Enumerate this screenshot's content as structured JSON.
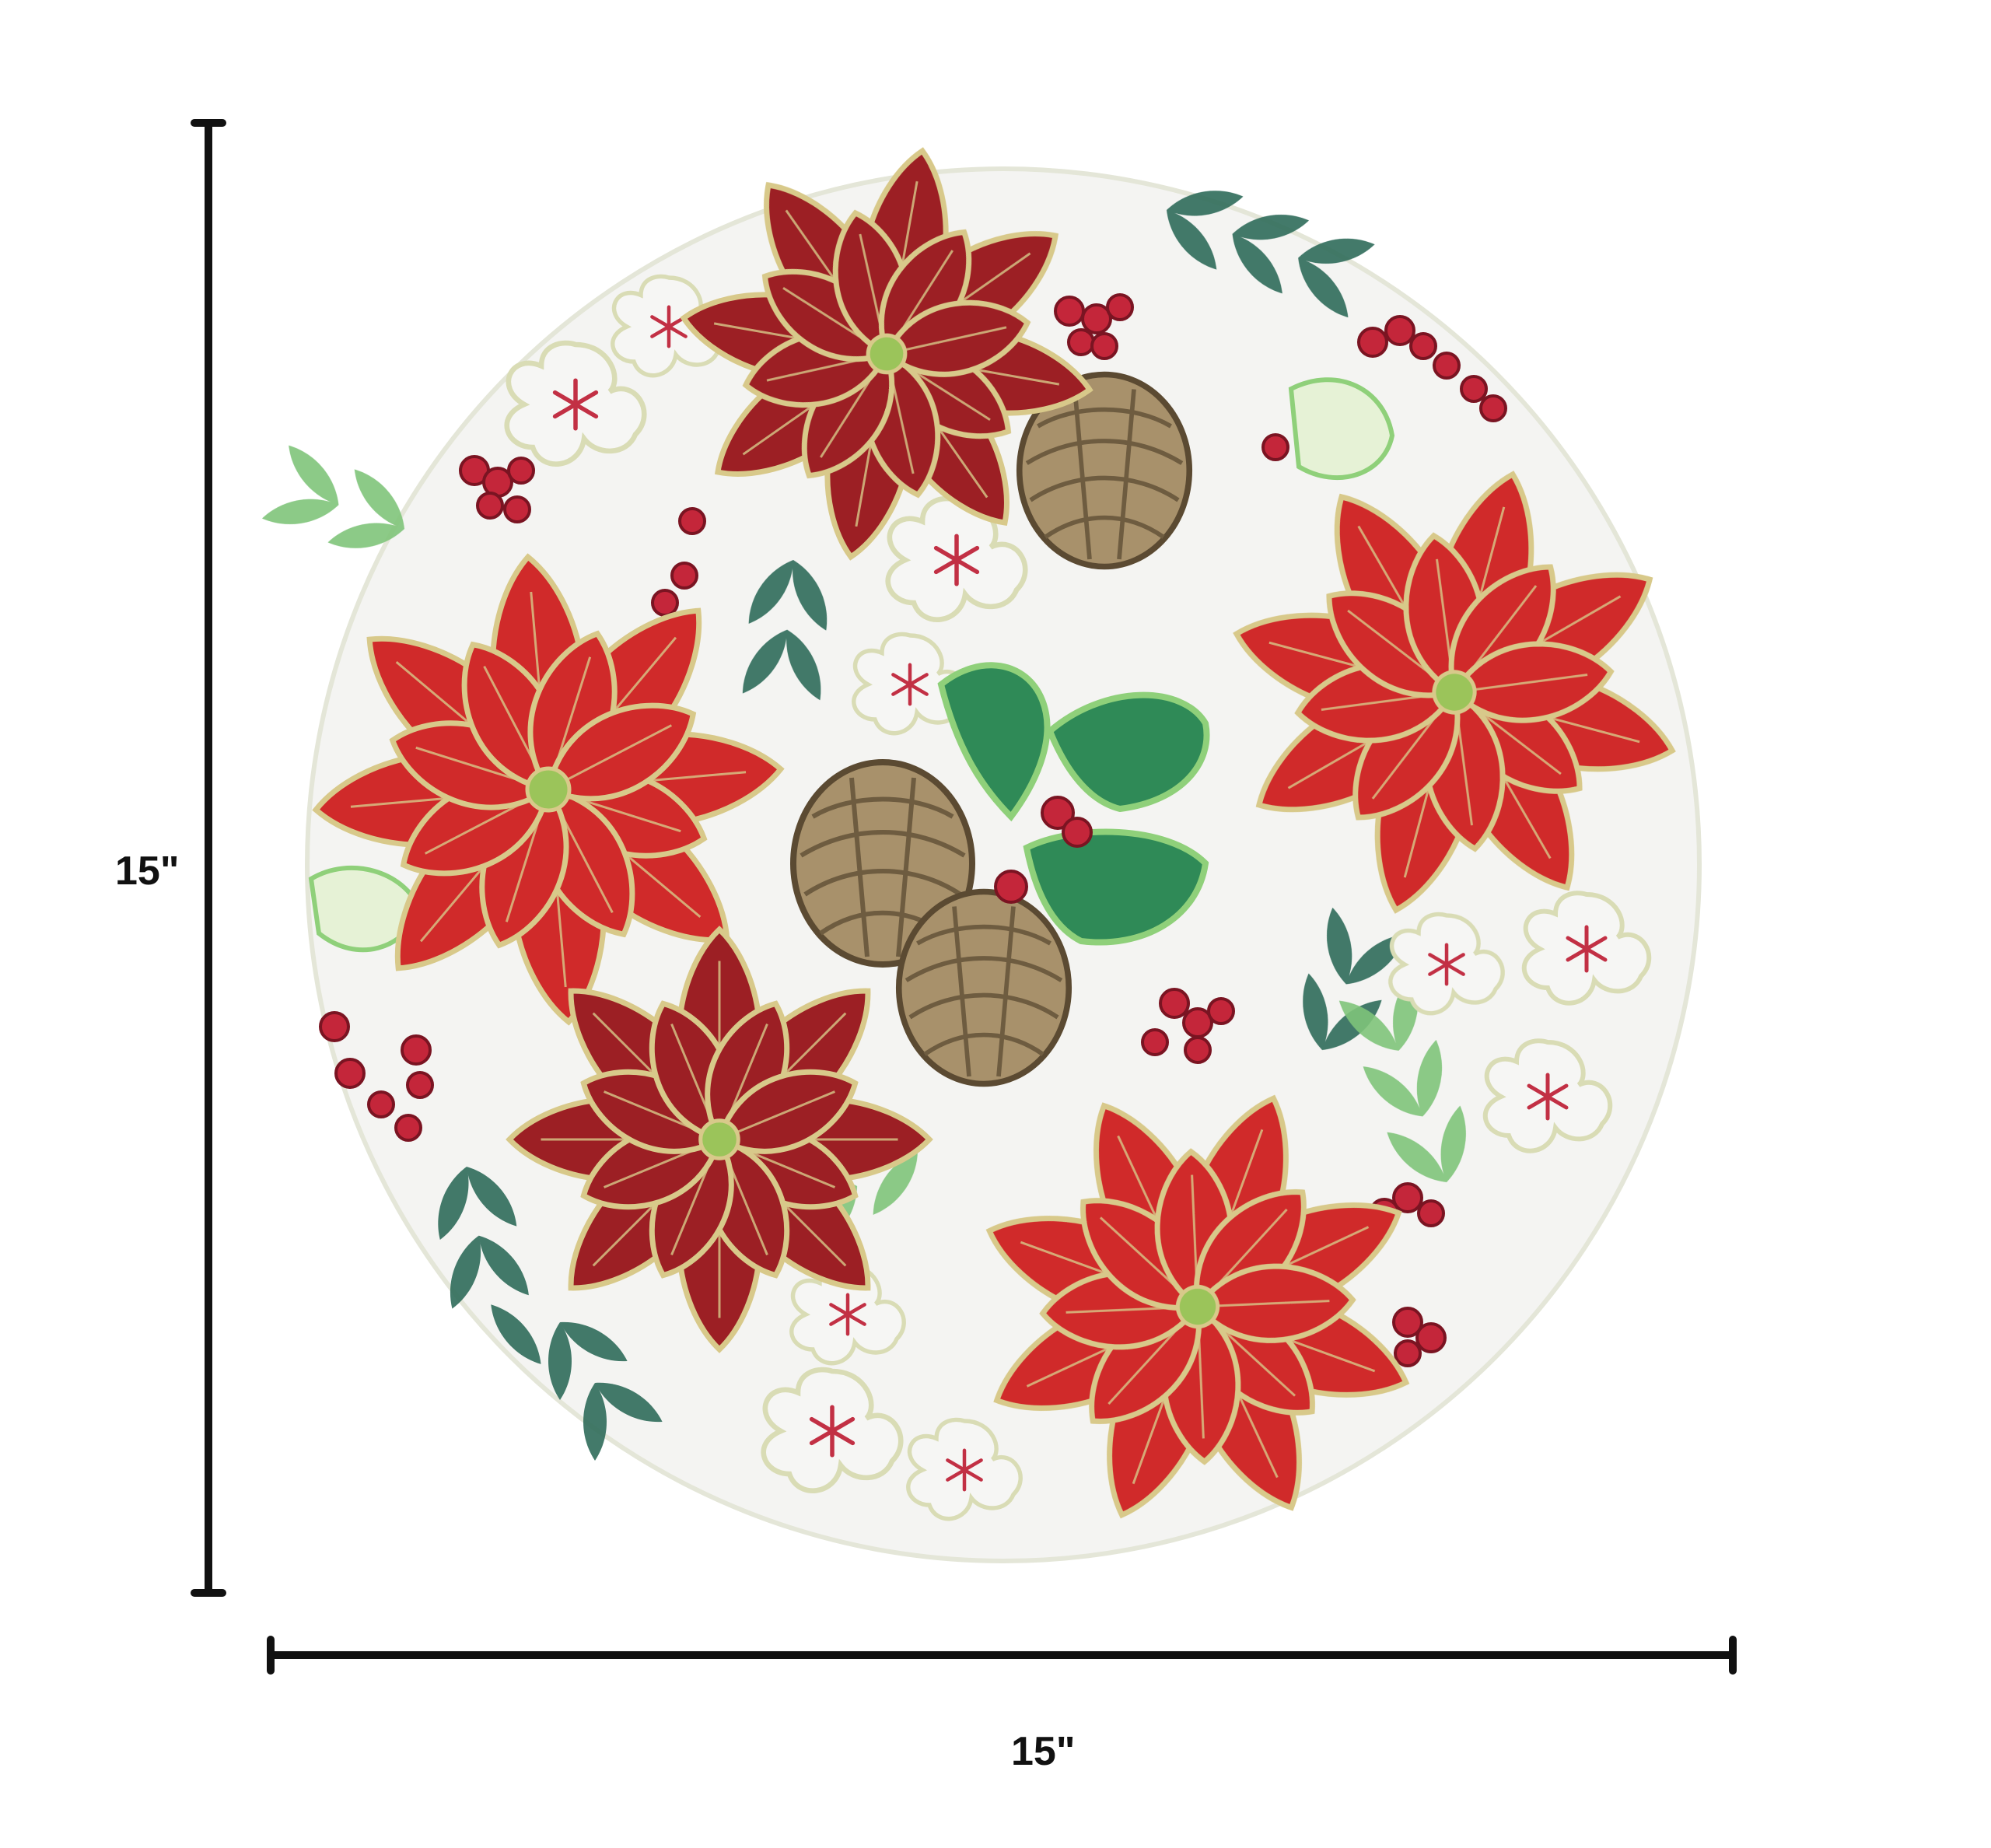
{
  "dimensions": {
    "height_label": "15\"",
    "width_label": "15\""
  },
  "colors": {
    "poinsettia_red": "#d02a2a",
    "poinsettia_dark": "#9c1f24",
    "gold_outline": "#d8c98a",
    "holly_green": "#2f8a57",
    "sage_leaf": "#7fc47a",
    "teal_leaf": "#2e6b5a",
    "pinecone": "#a8916b",
    "berry": "#c4263a",
    "fabric_white": "#f4f4f2",
    "dimension_line": "#111111"
  },
  "icons": [
    "poinsettia-icon",
    "pinecone-icon",
    "holly-leaf-icon",
    "berry-icon",
    "white-blossom-icon",
    "fern-sprig-icon"
  ]
}
